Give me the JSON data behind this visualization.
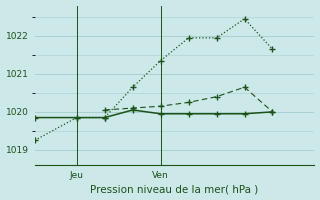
{
  "title": "Pression niveau de la mer( hPa )",
  "bg_color": "#cce8e8",
  "grid_color": "#aad0d0",
  "line_color": "#1a5218",
  "ylim": [
    1018.6,
    1022.8
  ],
  "yticks": [
    1019,
    1020,
    1021,
    1022
  ],
  "xlim": [
    0,
    10
  ],
  "jeu_x": 1.5,
  "ven_x": 4.5,
  "series_dotted": {
    "x": [
      0.0,
      1.5,
      2.5,
      3.5,
      4.5,
      5.5,
      6.5,
      7.5,
      8.5
    ],
    "y": [
      1019.25,
      1019.85,
      1019.85,
      1020.65,
      1021.35,
      1021.95,
      1021.95,
      1022.45,
      1021.65
    ]
  },
  "series_solid": {
    "x": [
      0.0,
      1.5,
      2.5,
      3.5,
      4.5,
      5.5,
      6.5,
      7.5,
      8.5
    ],
    "y": [
      1019.85,
      1019.85,
      1019.85,
      1020.05,
      1019.95,
      1019.95,
      1019.95,
      1019.95,
      1020.0
    ]
  },
  "series_dashed": {
    "x": [
      2.5,
      3.5,
      4.5,
      5.5,
      6.5,
      7.5,
      8.5
    ],
    "y": [
      1020.05,
      1020.1,
      1020.15,
      1020.25,
      1020.4,
      1020.65,
      1020.0
    ]
  }
}
